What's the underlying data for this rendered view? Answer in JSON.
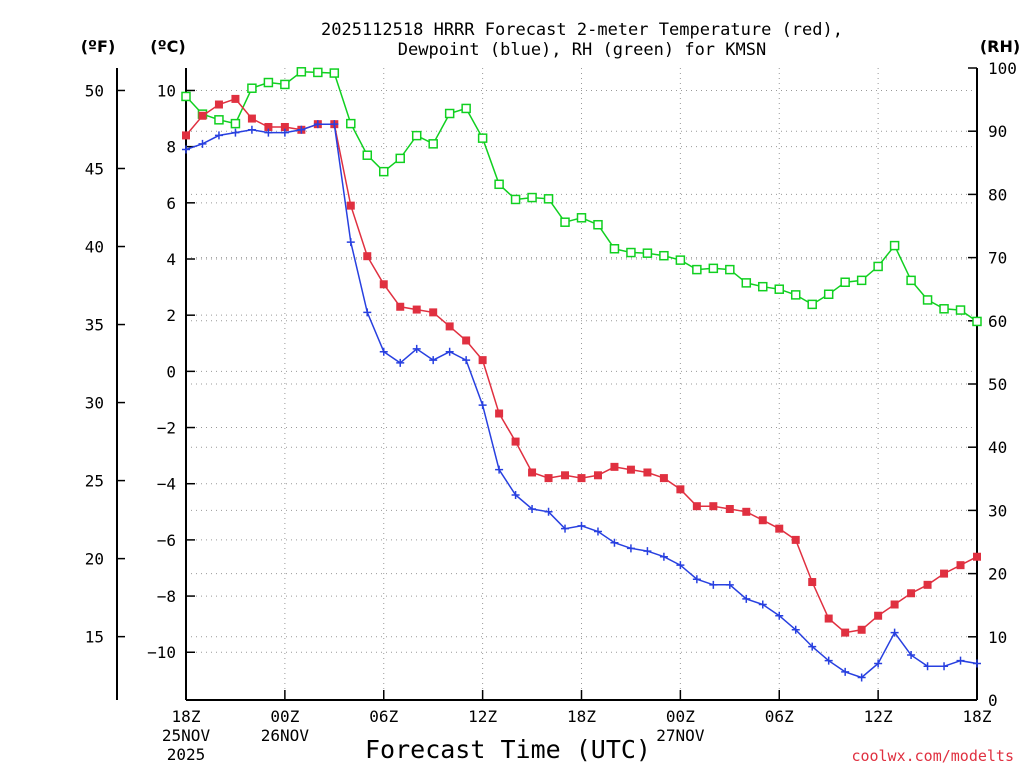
{
  "chart_data": {
    "type": "line",
    "title_line1": "2025112518 HRRR Forecast 2-meter Temperature (red),",
    "title_line2": "Dewpoint (blue), RH (green) for KMSN",
    "xlabel": "Forecast Time (UTC)",
    "credit": "coolwx.com/modelts",
    "unit_labels": {
      "fahrenheit": "(ºF)",
      "celsius": "(ºC)",
      "rh": "(RH)"
    },
    "colors": {
      "temperature": "#e03040",
      "dewpoint": "#2840e0",
      "rh": "#10d020",
      "grid": "#999999"
    },
    "x_range_hours": [
      0,
      48
    ],
    "celsius_range": [
      -11.7,
      10.8
    ],
    "rh_range": [
      0,
      100
    ],
    "x_ticks": [
      {
        "hour": 0,
        "lines": [
          "18Z",
          "25NOV",
          "2025"
        ]
      },
      {
        "hour": 6,
        "lines": [
          "00Z",
          "26NOV"
        ]
      },
      {
        "hour": 12,
        "lines": [
          "06Z"
        ]
      },
      {
        "hour": 18,
        "lines": [
          "12Z"
        ]
      },
      {
        "hour": 24,
        "lines": [
          "18Z"
        ]
      },
      {
        "hour": 30,
        "lines": [
          "00Z",
          "27NOV"
        ]
      },
      {
        "hour": 36,
        "lines": [
          "06Z"
        ]
      },
      {
        "hour": 42,
        "lines": [
          "12Z"
        ]
      },
      {
        "hour": 48,
        "lines": [
          "18Z"
        ]
      }
    ],
    "celsius_ticks": [
      {
        "value": 10,
        "label": "10"
      },
      {
        "value": 8,
        "label": "8"
      },
      {
        "value": 6,
        "label": "6"
      },
      {
        "value": 4,
        "label": "4"
      },
      {
        "value": 2,
        "label": "2"
      },
      {
        "value": 0,
        "label": "0"
      },
      {
        "value": -2,
        "label": "−2"
      },
      {
        "value": -4,
        "label": "−4"
      },
      {
        "value": -6,
        "label": "−6"
      },
      {
        "value": -8,
        "label": "−8"
      },
      {
        "value": -10,
        "label": "−10"
      }
    ],
    "fahrenheit_ticks": [
      {
        "value": 50,
        "label": "50"
      },
      {
        "value": 45,
        "label": "45"
      },
      {
        "value": 40,
        "label": "40"
      },
      {
        "value": 35,
        "label": "35"
      },
      {
        "value": 30,
        "label": "30"
      },
      {
        "value": 25,
        "label": "25"
      },
      {
        "value": 20,
        "label": "20"
      },
      {
        "value": 15,
        "label": "15"
      }
    ],
    "rh_ticks": [
      {
        "value": 100,
        "label": "100"
      },
      {
        "value": 90,
        "label": "90"
      },
      {
        "value": 80,
        "label": "80"
      },
      {
        "value": 70,
        "label": "70"
      },
      {
        "value": 60,
        "label": "60"
      },
      {
        "value": 50,
        "label": "50"
      },
      {
        "value": 40,
        "label": "40"
      },
      {
        "value": 30,
        "label": "30"
      },
      {
        "value": 20,
        "label": "20"
      },
      {
        "value": 10,
        "label": "10"
      },
      {
        "value": 0,
        "label": "0"
      }
    ],
    "series": [
      {
        "name": "Temperature (red)",
        "axis": "celsius",
        "marker": "filled-square",
        "values": [
          8.4,
          9.1,
          9.5,
          9.7,
          9.0,
          8.7,
          8.7,
          8.6,
          8.8,
          8.8,
          5.9,
          4.1,
          3.1,
          2.3,
          2.2,
          2.1,
          1.6,
          1.1,
          0.4,
          -1.5,
          -2.5,
          -3.6,
          -3.8,
          -3.7,
          -3.8,
          -3.7,
          -3.4,
          -3.5,
          -3.6,
          -3.8,
          -4.2,
          -4.8,
          -4.8,
          -4.9,
          -5.0,
          -5.3,
          -5.6,
          -6.0,
          -7.5,
          -8.8,
          -9.3,
          -9.2,
          -8.7,
          -8.3,
          -7.9,
          -7.6,
          -7.2,
          -6.9,
          -6.6
        ]
      },
      {
        "name": "Dewpoint (blue)",
        "axis": "celsius",
        "marker": "plus",
        "values": [
          7.9,
          8.1,
          8.4,
          8.5,
          8.6,
          8.5,
          8.5,
          8.6,
          8.8,
          8.8,
          4.6,
          2.1,
          0.7,
          0.3,
          0.8,
          0.4,
          0.7,
          0.4,
          -1.2,
          -3.5,
          -4.4,
          -4.9,
          -5.0,
          -5.6,
          -5.5,
          -5.7,
          -6.1,
          -6.3,
          -6.4,
          -6.6,
          -6.9,
          -7.4,
          -7.6,
          -7.6,
          -8.1,
          -8.3,
          -8.7,
          -9.2,
          -9.8,
          -10.3,
          -10.7,
          -10.9,
          -10.4,
          -9.3,
          -10.1,
          -10.5,
          -10.5,
          -10.3,
          -10.4
        ]
      },
      {
        "name": "RH (green)",
        "axis": "rh",
        "marker": "open-square",
        "values": [
          95.5,
          92.7,
          91.8,
          91.2,
          96.8,
          97.7,
          97.4,
          99.4,
          99.3,
          99.2,
          91.2,
          86.2,
          83.6,
          85.7,
          89.3,
          88.0,
          92.8,
          93.6,
          88.9,
          81.6,
          79.2,
          79.5,
          79.3,
          75.6,
          76.3,
          75.2,
          71.4,
          70.8,
          70.7,
          70.3,
          69.6,
          68.1,
          68.3,
          68.1,
          66.0,
          65.4,
          65.0,
          64.1,
          62.6,
          64.2,
          66.1,
          66.4,
          68.6,
          71.9,
          66.4,
          63.3,
          61.9,
          61.7,
          59.9
        ]
      }
    ]
  }
}
